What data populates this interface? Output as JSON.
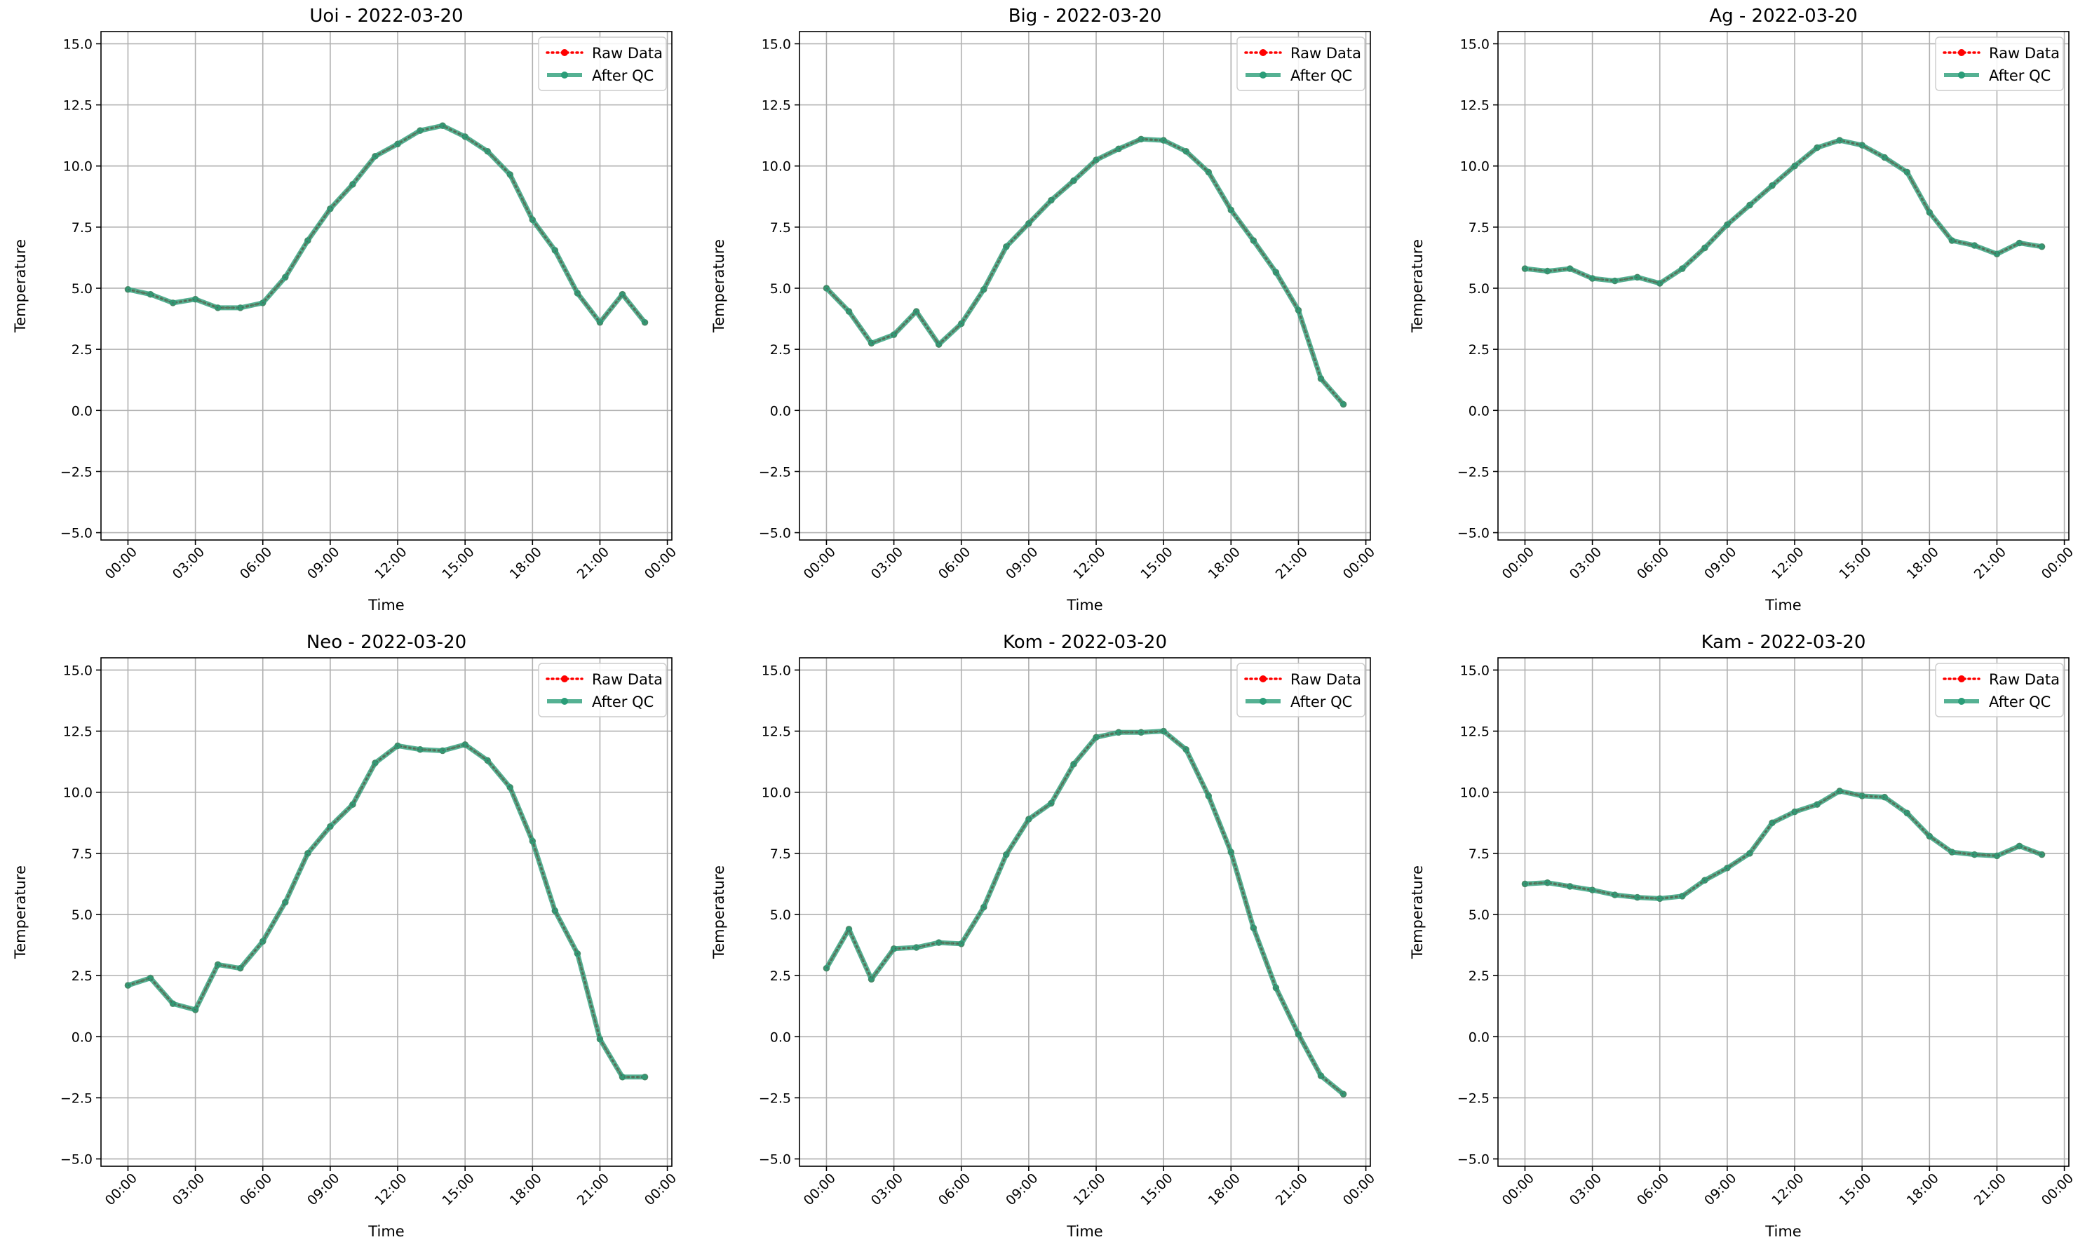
{
  "chart_data": [
    {
      "type": "line",
      "title": "Uoi - 2022-03-20",
      "xlabel": "Time",
      "ylabel": "Temperature",
      "ylim": [
        -5.3,
        15.5
      ],
      "yticks": [
        -5.0,
        -2.5,
        0.0,
        2.5,
        5.0,
        7.5,
        10.0,
        12.5,
        15.0
      ],
      "ytick_labels": [
        "−5.0",
        "−2.5",
        "0.0",
        "2.5",
        "5.0",
        "7.5",
        "10.0",
        "12.5",
        "15.0"
      ],
      "xticks": [
        0,
        3,
        6,
        9,
        12,
        15,
        18,
        21,
        24
      ],
      "xtick_labels": [
        "00:00",
        "03:00",
        "06:00",
        "09:00",
        "12:00",
        "15:00",
        "18:00",
        "21:00",
        "00:00"
      ],
      "x": [
        0,
        1,
        2,
        3,
        4,
        5,
        6,
        7,
        8,
        9,
        10,
        11,
        12,
        13,
        14,
        15,
        16,
        17,
        18,
        19,
        20,
        21,
        22,
        23
      ],
      "grid": true,
      "legend": "top-right",
      "series": [
        {
          "name": "Raw Data",
          "color": "#ff0000",
          "values": [
            4.95,
            4.75,
            4.4,
            4.55,
            4.2,
            4.2,
            4.4,
            5.45,
            6.95,
            8.25,
            9.25,
            10.4,
            10.9,
            11.45,
            11.65,
            11.2,
            10.6,
            9.65,
            7.8,
            6.55,
            4.8,
            3.6,
            4.75,
            3.6
          ]
        },
        {
          "name": "After QC",
          "color": "#2a9d78",
          "values": [
            4.95,
            4.75,
            4.4,
            4.55,
            4.2,
            4.2,
            4.4,
            5.45,
            6.95,
            8.25,
            9.25,
            10.4,
            10.9,
            11.45,
            11.65,
            11.2,
            10.6,
            9.65,
            7.8,
            6.55,
            4.8,
            3.6,
            4.75,
            3.6
          ]
        }
      ]
    },
    {
      "type": "line",
      "title": "Big - 2022-03-20",
      "xlabel": "Time",
      "ylabel": "Temperature",
      "ylim": [
        -5.3,
        15.5
      ],
      "yticks": [
        -5.0,
        -2.5,
        0.0,
        2.5,
        5.0,
        7.5,
        10.0,
        12.5,
        15.0
      ],
      "ytick_labels": [
        "−5.0",
        "−2.5",
        "0.0",
        "2.5",
        "5.0",
        "7.5",
        "10.0",
        "12.5",
        "15.0"
      ],
      "xticks": [
        0,
        3,
        6,
        9,
        12,
        15,
        18,
        21,
        24
      ],
      "xtick_labels": [
        "00:00",
        "03:00",
        "06:00",
        "09:00",
        "12:00",
        "15:00",
        "18:00",
        "21:00",
        "00:00"
      ],
      "x": [
        0,
        1,
        2,
        3,
        4,
        5,
        6,
        7,
        8,
        9,
        10,
        11,
        12,
        13,
        14,
        15,
        16,
        17,
        18,
        19,
        20,
        21,
        22,
        23
      ],
      "grid": true,
      "legend": "top-right",
      "series": [
        {
          "name": "Raw Data",
          "color": "#ff0000",
          "values": [
            5.0,
            4.05,
            2.75,
            3.1,
            4.05,
            2.7,
            3.55,
            4.95,
            6.7,
            7.65,
            8.6,
            9.4,
            10.25,
            10.7,
            11.1,
            11.05,
            10.6,
            9.75,
            8.2,
            6.95,
            5.65,
            4.1,
            1.3,
            0.25
          ]
        },
        {
          "name": "After QC",
          "color": "#2a9d78",
          "values": [
            5.0,
            4.05,
            2.75,
            3.1,
            4.05,
            2.7,
            3.55,
            4.95,
            6.7,
            7.65,
            8.6,
            9.4,
            10.25,
            10.7,
            11.1,
            11.05,
            10.6,
            9.75,
            8.2,
            6.95,
            5.65,
            4.1,
            1.3,
            0.25
          ]
        }
      ]
    },
    {
      "type": "line",
      "title": "Ag - 2022-03-20",
      "xlabel": "Time",
      "ylabel": "Temperature",
      "ylim": [
        -5.3,
        15.5
      ],
      "yticks": [
        -5.0,
        -2.5,
        0.0,
        2.5,
        5.0,
        7.5,
        10.0,
        12.5,
        15.0
      ],
      "ytick_labels": [
        "−5.0",
        "−2.5",
        "0.0",
        "2.5",
        "5.0",
        "7.5",
        "10.0",
        "12.5",
        "15.0"
      ],
      "xticks": [
        0,
        3,
        6,
        9,
        12,
        15,
        18,
        21,
        24
      ],
      "xtick_labels": [
        "00:00",
        "03:00",
        "06:00",
        "09:00",
        "12:00",
        "15:00",
        "18:00",
        "21:00",
        "00:00"
      ],
      "x": [
        0,
        1,
        2,
        3,
        4,
        5,
        6,
        7,
        8,
        9,
        10,
        11,
        12,
        13,
        14,
        15,
        16,
        17,
        18,
        19,
        20,
        21,
        22,
        23
      ],
      "grid": true,
      "legend": "top-right",
      "series": [
        {
          "name": "Raw Data",
          "color": "#ff0000",
          "values": [
            5.8,
            5.7,
            5.8,
            5.4,
            5.3,
            5.45,
            5.2,
            5.8,
            6.65,
            7.6,
            8.4,
            9.2,
            10.0,
            10.75,
            11.05,
            10.85,
            10.35,
            9.75,
            8.1,
            6.95,
            6.75,
            6.4,
            6.85,
            6.7
          ]
        },
        {
          "name": "After QC",
          "color": "#2a9d78",
          "values": [
            5.8,
            5.7,
            5.8,
            5.4,
            5.3,
            5.45,
            5.2,
            5.8,
            6.65,
            7.6,
            8.4,
            9.2,
            10.0,
            10.75,
            11.05,
            10.85,
            10.35,
            9.75,
            8.1,
            6.95,
            6.75,
            6.4,
            6.85,
            6.7
          ]
        }
      ]
    },
    {
      "type": "line",
      "title": "Neo - 2022-03-20",
      "xlabel": "Time",
      "ylabel": "Temperature",
      "ylim": [
        -5.3,
        15.5
      ],
      "yticks": [
        -5.0,
        -2.5,
        0.0,
        2.5,
        5.0,
        7.5,
        10.0,
        12.5,
        15.0
      ],
      "ytick_labels": [
        "−5.0",
        "−2.5",
        "0.0",
        "2.5",
        "5.0",
        "7.5",
        "10.0",
        "12.5",
        "15.0"
      ],
      "xticks": [
        0,
        3,
        6,
        9,
        12,
        15,
        18,
        21,
        24
      ],
      "xtick_labels": [
        "00:00",
        "03:00",
        "06:00",
        "09:00",
        "12:00",
        "15:00",
        "18:00",
        "21:00",
        "00:00"
      ],
      "x": [
        0,
        1,
        2,
        3,
        4,
        5,
        6,
        7,
        8,
        9,
        10,
        11,
        12,
        13,
        14,
        15,
        16,
        17,
        18,
        19,
        20,
        21,
        22,
        23
      ],
      "grid": true,
      "legend": "top-right",
      "series": [
        {
          "name": "Raw Data",
          "color": "#ff0000",
          "values": [
            2.1,
            2.4,
            1.35,
            1.1,
            2.95,
            2.8,
            3.9,
            5.5,
            7.5,
            8.6,
            9.5,
            11.2,
            11.9,
            11.75,
            11.7,
            11.95,
            11.3,
            10.2,
            8.0,
            5.15,
            3.4,
            -0.1,
            -1.65,
            -1.65
          ]
        },
        {
          "name": "After QC",
          "color": "#2a9d78",
          "values": [
            2.1,
            2.4,
            1.35,
            1.1,
            2.95,
            2.8,
            3.9,
            5.5,
            7.5,
            8.6,
            9.5,
            11.2,
            11.9,
            11.75,
            11.7,
            11.95,
            11.3,
            10.2,
            8.0,
            5.15,
            3.4,
            -0.1,
            -1.65,
            -1.65
          ]
        }
      ]
    },
    {
      "type": "line",
      "title": "Kom - 2022-03-20",
      "xlabel": "Time",
      "ylabel": "Temperature",
      "ylim": [
        -5.3,
        15.5
      ],
      "yticks": [
        -5.0,
        -2.5,
        0.0,
        2.5,
        5.0,
        7.5,
        10.0,
        12.5,
        15.0
      ],
      "ytick_labels": [
        "−5.0",
        "−2.5",
        "0.0",
        "2.5",
        "5.0",
        "7.5",
        "10.0",
        "12.5",
        "15.0"
      ],
      "xticks": [
        0,
        3,
        6,
        9,
        12,
        15,
        18,
        21,
        24
      ],
      "xtick_labels": [
        "00:00",
        "03:00",
        "06:00",
        "09:00",
        "12:00",
        "15:00",
        "18:00",
        "21:00",
        "00:00"
      ],
      "x": [
        0,
        1,
        2,
        3,
        4,
        5,
        6,
        7,
        8,
        9,
        10,
        11,
        12,
        13,
        14,
        15,
        16,
        17,
        18,
        19,
        20,
        21,
        22,
        23
      ],
      "grid": true,
      "legend": "top-right",
      "series": [
        {
          "name": "Raw Data",
          "color": "#ff0000",
          "values": [
            2.8,
            4.4,
            2.35,
            3.6,
            3.65,
            3.85,
            3.8,
            5.3,
            7.45,
            8.9,
            9.55,
            11.15,
            12.25,
            12.45,
            12.45,
            12.5,
            11.75,
            9.85,
            7.55,
            4.45,
            2.0,
            0.1,
            -1.6,
            -2.35
          ]
        },
        {
          "name": "After QC",
          "color": "#2a9d78",
          "values": [
            2.8,
            4.4,
            2.35,
            3.6,
            3.65,
            3.85,
            3.8,
            5.3,
            7.45,
            8.9,
            9.55,
            11.15,
            12.25,
            12.45,
            12.45,
            12.5,
            11.75,
            9.85,
            7.55,
            4.45,
            2.0,
            0.1,
            -1.6,
            -2.35
          ]
        }
      ]
    },
    {
      "type": "line",
      "title": "Kam - 2022-03-20",
      "xlabel": "Time",
      "ylabel": "Temperature",
      "ylim": [
        -5.3,
        15.5
      ],
      "yticks": [
        -5.0,
        -2.5,
        0.0,
        2.5,
        5.0,
        7.5,
        10.0,
        12.5,
        15.0
      ],
      "ytick_labels": [
        "−5.0",
        "−2.5",
        "0.0",
        "2.5",
        "5.0",
        "7.5",
        "10.0",
        "12.5",
        "15.0"
      ],
      "xticks": [
        0,
        3,
        6,
        9,
        12,
        15,
        18,
        21,
        24
      ],
      "xtick_labels": [
        "00:00",
        "03:00",
        "06:00",
        "09:00",
        "12:00",
        "15:00",
        "18:00",
        "21:00",
        "00:00"
      ],
      "x": [
        0,
        1,
        2,
        3,
        4,
        5,
        6,
        7,
        8,
        9,
        10,
        11,
        12,
        13,
        14,
        15,
        16,
        17,
        18,
        19,
        20,
        21,
        22,
        23
      ],
      "grid": true,
      "legend": "top-right",
      "series": [
        {
          "name": "Raw Data",
          "color": "#ff0000",
          "values": [
            6.25,
            6.3,
            6.15,
            6.0,
            5.8,
            5.7,
            5.65,
            5.75,
            6.4,
            6.9,
            7.5,
            8.75,
            9.2,
            9.5,
            10.05,
            9.85,
            9.8,
            9.15,
            8.2,
            7.55,
            7.45,
            7.4,
            7.8,
            7.45
          ]
        },
        {
          "name": "After QC",
          "color": "#2a9d78",
          "values": [
            6.25,
            6.3,
            6.15,
            6.0,
            5.8,
            5.7,
            5.65,
            5.75,
            6.4,
            6.9,
            7.5,
            8.75,
            9.2,
            9.5,
            10.05,
            9.85,
            9.8,
            9.15,
            8.2,
            7.55,
            7.45,
            7.4,
            7.8,
            7.45
          ]
        }
      ]
    }
  ]
}
